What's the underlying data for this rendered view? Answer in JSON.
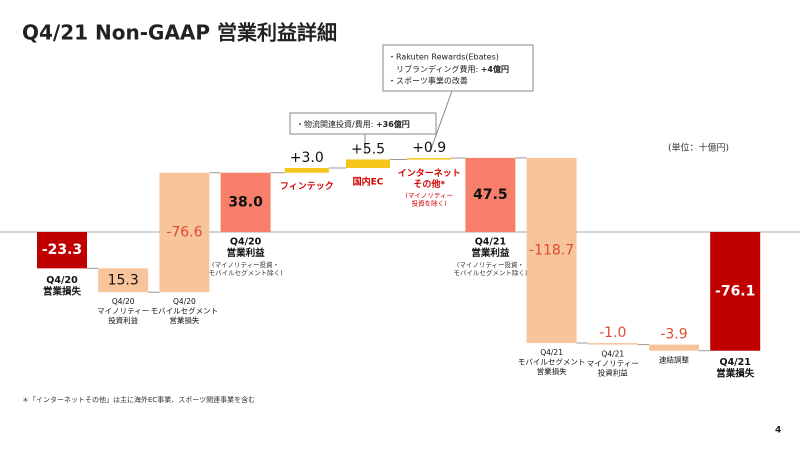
{
  "title": "Q4/21 Non-GAAP 営業利益詳細",
  "unit_note": "(単位：十億円)",
  "callouts": [
    {
      "lines": [
        {
          "text": "・物流関連投資/費用: ",
          "bold": "+36億円"
        }
      ]
    },
    {
      "lines": [
        {
          "text": "・Rakuten Rewards(Ebates)"
        },
        {
          "text": "　リブランディング費用: ",
          "bold": "+4億円"
        },
        {
          "text": "・スポーツ事業の改善"
        }
      ]
    }
  ],
  "footnote": "＊「インターネットその他」は主に海外EC事業、スポーツ関連事業を含む",
  "page_number": "4",
  "chart_data": {
    "type": "waterfall",
    "categories": [
      [
        "Q4/20",
        "営業損失"
      ],
      [
        "Q4/20",
        "マイノリティー",
        "投資利益"
      ],
      [
        "Q4/20",
        "モバイルセグメント",
        "営業損失"
      ],
      [
        "Q4/20",
        "営業利益"
      ],
      [
        "フィンテック"
      ],
      [
        "国内EC"
      ],
      [
        "インターネット",
        "その他*"
      ],
      [
        "Q4/21",
        "営業利益"
      ],
      [
        "Q4/21",
        "モバイルセグメント",
        "営業損失"
      ],
      [
        "Q4/21",
        "マイノリティー",
        "投資利益"
      ],
      [
        "連結調整"
      ],
      [
        "Q4/21",
        "営業損失"
      ]
    ],
    "category_notes": [
      null,
      null,
      null,
      [
        "(マイノリティー投資・",
        "モバイルセグメント除く)"
      ],
      null,
      null,
      [
        "(マイノリティー",
        "投資を除く)"
      ],
      [
        "(マイノリティー投資・",
        "モバイルセグメント除く)"
      ],
      null,
      null,
      null,
      null
    ],
    "measure": [
      "total",
      "reverse",
      "reverse",
      "total",
      "relative",
      "relative",
      "relative",
      "total",
      "relative",
      "relative",
      "relative",
      "total"
    ],
    "values": [
      -23.3,
      15.3,
      -76.6,
      38.0,
      3.0,
      5.5,
      0.9,
      47.5,
      -118.7,
      -1.0,
      -3.9,
      -76.1
    ],
    "value_labels": [
      "-23.3",
      "15.3",
      "-76.6",
      "38.0",
      "+3.0",
      "+5.5",
      "+0.9",
      "47.5",
      "-118.7",
      "-1.0",
      "-3.9",
      "-76.1"
    ],
    "colors": [
      "#c00000",
      "#f8c49c",
      "#f8c49c",
      "#f8806a",
      "#f5c518",
      "#f5c518",
      "#f5c518",
      "#f8806a",
      "#f8c49c",
      "#f8c49c",
      "#f8c49c",
      "#c00000"
    ],
    "ylim": [
      -80,
      60
    ]
  }
}
